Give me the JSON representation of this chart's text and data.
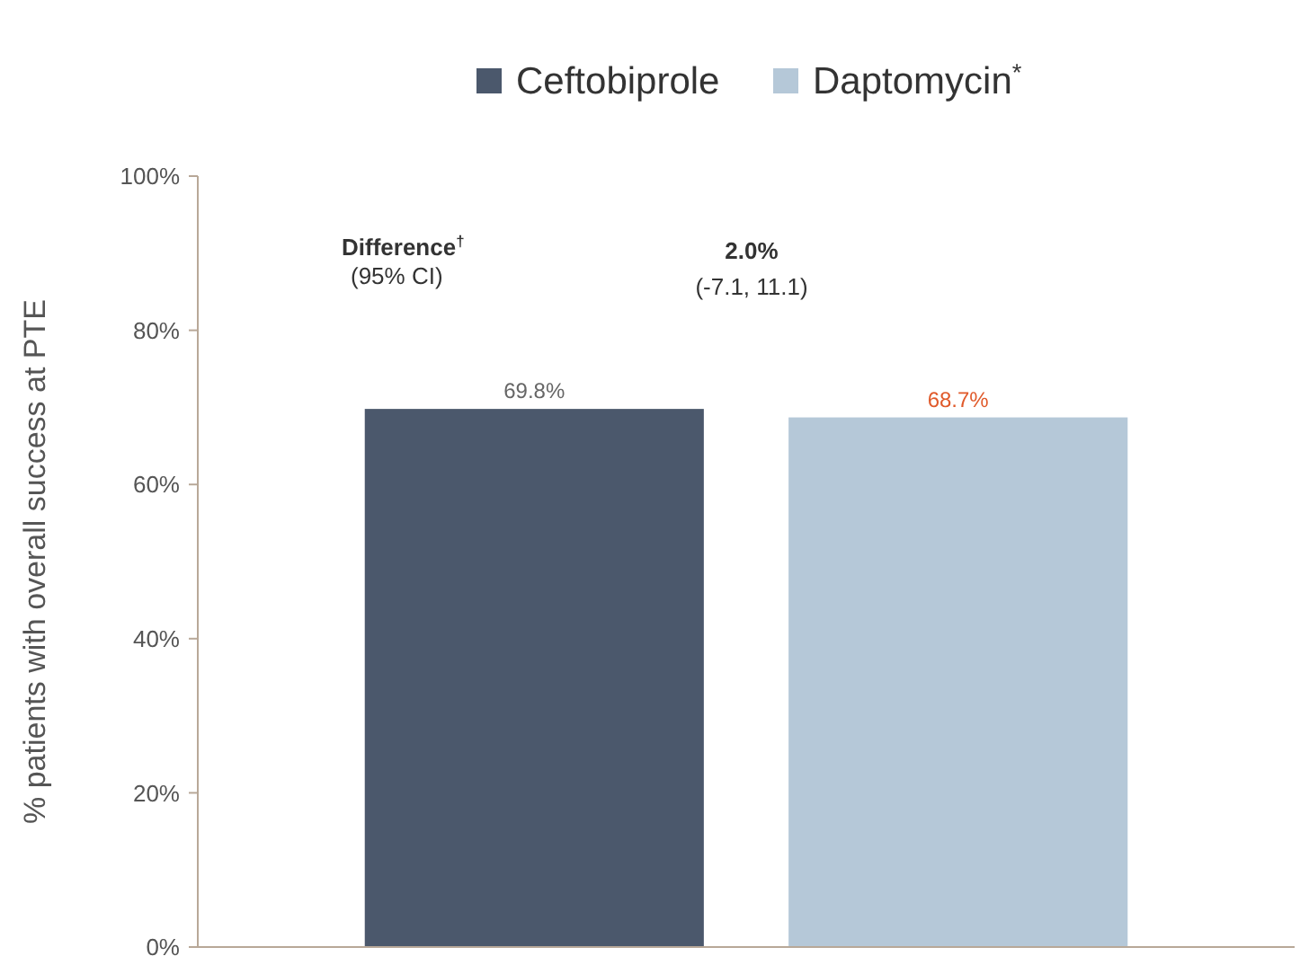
{
  "chart_data": {
    "type": "bar",
    "ylabel": "% patients with overall success at PTE",
    "categories": [
      null
    ],
    "series": [
      {
        "name": "Ceftobiprole",
        "color": "#4b586c",
        "values": [
          69.8
        ],
        "value_labels": [
          "69.8%"
        ]
      },
      {
        "name": "Daptomycin$^{*}$",
        "color": "#b5c8d8",
        "values": [
          68.7
        ],
        "value_labels": [
          "68.7%"
        ]
      }
    ],
    "ylim": [
      0,
      100
    ],
    "yticks": [
      {
        "value": 0,
        "label": "0%"
      },
      {
        "value": 20,
        "label": "20%"
      },
      {
        "value": 40,
        "label": "40%"
      },
      {
        "value": 60,
        "label": "60%"
      },
      {
        "value": 80,
        "label": "80%"
      },
      {
        "value": 100,
        "label": "100%"
      }
    ],
    "legend": "top",
    "grid": false,
    "annotations": [
      "Difference$^{†}$",
      "(95% CI)",
      "2.0%",
      "(-7.1, 11.1)"
    ]
  }
}
